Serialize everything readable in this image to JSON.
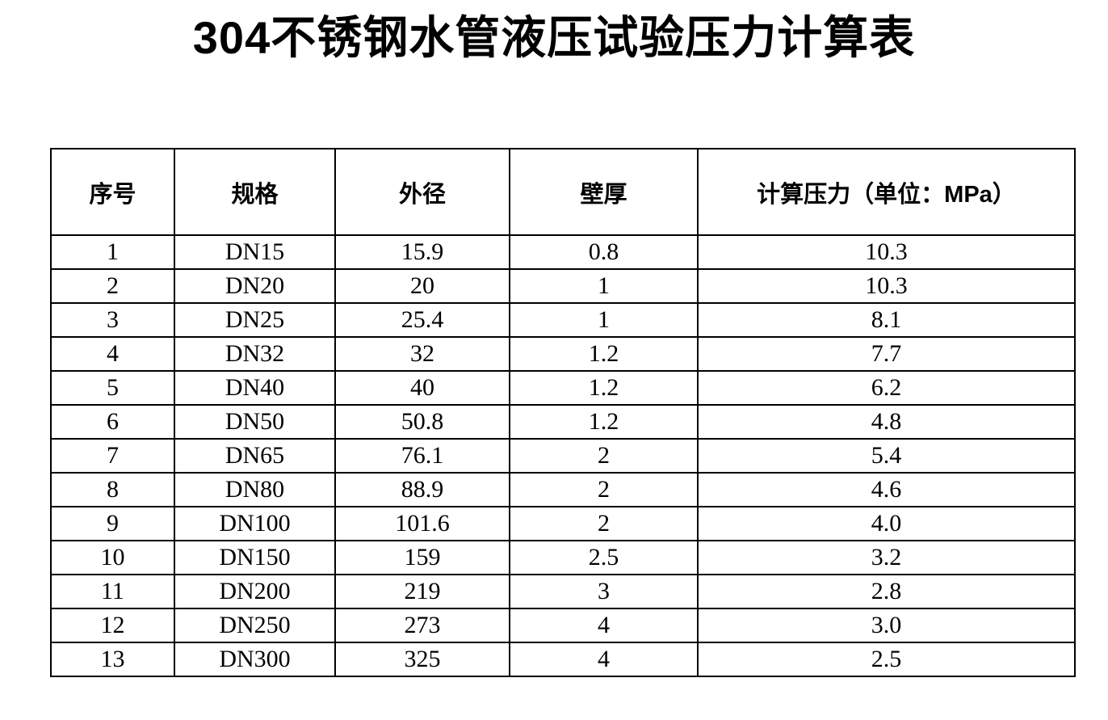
{
  "page": {
    "title": "304不锈钢水管液压试验压力计算表"
  },
  "colors": {
    "text": "#000000",
    "border": "#000000",
    "background": "#ffffff"
  },
  "table": {
    "headers": [
      "序号",
      "规格",
      "外径",
      "壁厚",
      "计算压力（单位：MPa）"
    ],
    "header_keys": [
      "index",
      "spec",
      "outer-diameter",
      "wall-thickness",
      "calc-pressure"
    ],
    "rows": [
      [
        "1",
        "DN15",
        "15.9",
        "0.8",
        "10.3"
      ],
      [
        "2",
        "DN20",
        "20",
        "1",
        "10.3"
      ],
      [
        "3",
        "DN25",
        "25.4",
        "1",
        "8.1"
      ],
      [
        "4",
        "DN32",
        "32",
        "1.2",
        "7.7"
      ],
      [
        "5",
        "DN40",
        "40",
        "1.2",
        "6.2"
      ],
      [
        "6",
        "DN50",
        "50.8",
        "1.2",
        "4.8"
      ],
      [
        "7",
        "DN65",
        "76.1",
        "2",
        "5.4"
      ],
      [
        "8",
        "DN80",
        "88.9",
        "2",
        "4.6"
      ],
      [
        "9",
        "DN100",
        "101.6",
        "2",
        "4.0"
      ],
      [
        "10",
        "DN150",
        "159",
        "2.5",
        "3.2"
      ],
      [
        "11",
        "DN200",
        "219",
        "3",
        "2.8"
      ],
      [
        "12",
        "DN250",
        "273",
        "4",
        "3.0"
      ],
      [
        "13",
        "DN300",
        "325",
        "4",
        "2.5"
      ]
    ]
  },
  "chart_data": {
    "type": "table",
    "title": "304不锈钢水管液压试验压力计算表",
    "columns": [
      "序号",
      "规格",
      "外径",
      "壁厚",
      "计算压力（单位：MPa）"
    ],
    "rows": [
      [
        1,
        "DN15",
        15.9,
        0.8,
        10.3
      ],
      [
        2,
        "DN20",
        20,
        1,
        10.3
      ],
      [
        3,
        "DN25",
        25.4,
        1,
        8.1
      ],
      [
        4,
        "DN32",
        32,
        1.2,
        7.7
      ],
      [
        5,
        "DN40",
        40,
        1.2,
        6.2
      ],
      [
        6,
        "DN50",
        50.8,
        1.2,
        4.8
      ],
      [
        7,
        "DN65",
        76.1,
        2,
        5.4
      ],
      [
        8,
        "DN80",
        88.9,
        2,
        4.6
      ],
      [
        9,
        "DN100",
        101.6,
        2,
        4.0
      ],
      [
        10,
        "DN150",
        159,
        2.5,
        3.2
      ],
      [
        11,
        "DN200",
        219,
        3,
        2.8
      ],
      [
        12,
        "DN250",
        273,
        4,
        3.0
      ],
      [
        13,
        "DN300",
        325,
        4,
        2.5
      ]
    ]
  }
}
